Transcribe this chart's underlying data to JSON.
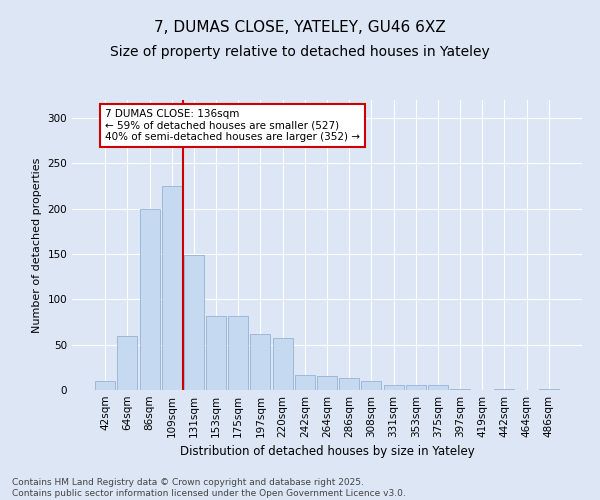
{
  "title": "7, DUMAS CLOSE, YATELEY, GU46 6XZ",
  "subtitle": "Size of property relative to detached houses in Yateley",
  "xlabel": "Distribution of detached houses by size in Yateley",
  "ylabel": "Number of detached properties",
  "categories": [
    "42sqm",
    "64sqm",
    "86sqm",
    "109sqm",
    "131sqm",
    "153sqm",
    "175sqm",
    "197sqm",
    "220sqm",
    "242sqm",
    "264sqm",
    "286sqm",
    "308sqm",
    "331sqm",
    "353sqm",
    "375sqm",
    "397sqm",
    "419sqm",
    "442sqm",
    "464sqm",
    "486sqm"
  ],
  "values": [
    10,
    60,
    200,
    225,
    149,
    82,
    82,
    62,
    57,
    17,
    15,
    13,
    10,
    5,
    6,
    6,
    1,
    0,
    1,
    0,
    1
  ],
  "bar_color": "#c5d9f0",
  "bar_edge_color": "#a0b8d8",
  "vline_x_index": 4,
  "vline_color": "#cc0000",
  "annotation_text": "7 DUMAS CLOSE: 136sqm\n← 59% of detached houses are smaller (527)\n40% of semi-detached houses are larger (352) →",
  "annotation_box_color": "#ffffff",
  "annotation_box_edge_color": "#cc0000",
  "ylim": [
    0,
    320
  ],
  "yticks": [
    0,
    50,
    100,
    150,
    200,
    250,
    300
  ],
  "background_color": "#dce6f5",
  "footer_text": "Contains HM Land Registry data © Crown copyright and database right 2025.\nContains public sector information licensed under the Open Government Licence v3.0.",
  "title_fontsize": 11,
  "subtitle_fontsize": 10,
  "xlabel_fontsize": 8.5,
  "ylabel_fontsize": 8,
  "tick_fontsize": 7.5,
  "annotation_fontsize": 7.5,
  "footer_fontsize": 6.5
}
